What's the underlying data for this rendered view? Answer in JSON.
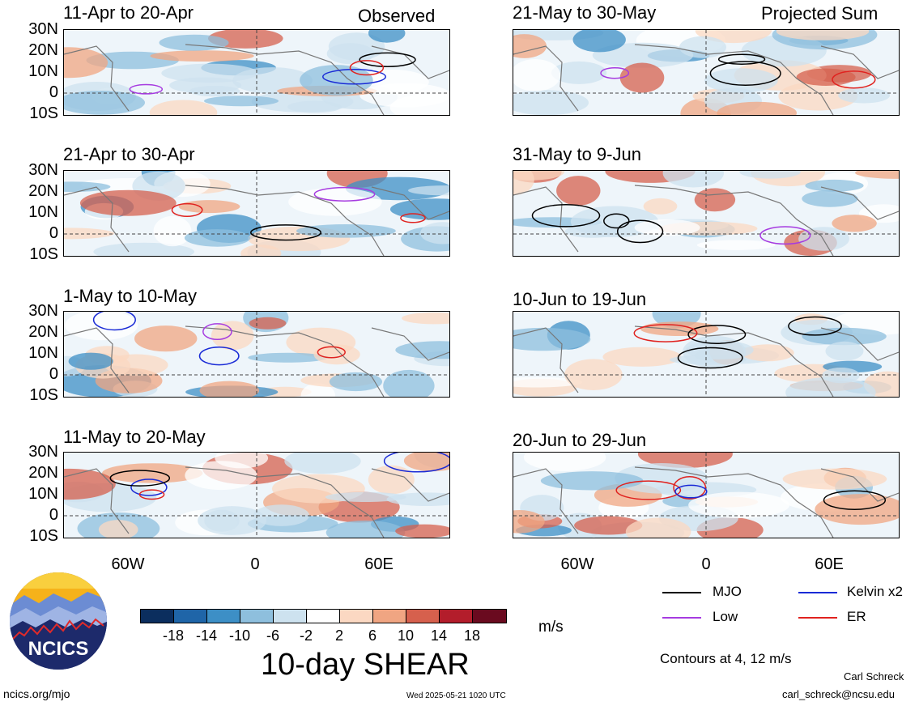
{
  "left_column_label": "Observed",
  "right_column_label": "Projected Sum",
  "panels": [
    {
      "title": "11-Apr to 20-Apr"
    },
    {
      "title": "21-Apr to 30-Apr"
    },
    {
      "title": "1-May to 10-May"
    },
    {
      "title": "11-May to 20-May"
    },
    {
      "title": "21-May to 30-May"
    },
    {
      "title": "31-May to 9-Jun"
    },
    {
      "title": "10-Jun to 19-Jun"
    },
    {
      "title": "20-Jun to 29-Jun"
    }
  ],
  "lat_labels": [
    "30N",
    "20N",
    "10N",
    "0",
    "10S"
  ],
  "lon_labels": [
    "60W",
    "0",
    "60E"
  ],
  "colorbar": {
    "colors": [
      "#0b2e5e",
      "#1f65a8",
      "#3d8fc6",
      "#8ebfdd",
      "#cde2ef",
      "#ffffff",
      "#fbd8c2",
      "#f0a582",
      "#d6604d",
      "#b31d2b",
      "#6a0a1f"
    ],
    "labels": [
      "-18",
      "-14",
      "-10",
      "-6",
      "-2",
      "2",
      "6",
      "10",
      "14",
      "18"
    ],
    "unit": "m/s"
  },
  "title": "10-day SHEAR",
  "legend": [
    {
      "label": "MJO",
      "color": "#000000"
    },
    {
      "label": "Kelvin x2",
      "color": "#1a2bd6"
    },
    {
      "label": "Low",
      "color": "#a63be0"
    },
    {
      "label": "ER",
      "color": "#e0221f"
    }
  ],
  "contour_note": "Contours at 4, 12 m/s",
  "logo_text": "NCICS",
  "footer": {
    "url": "ncics.org/mjo",
    "timestamp": "Wed 2025-05-21 1020 UTC",
    "author": "Carl Schreck",
    "email": "carl_schreck@ncsu.edu"
  }
}
